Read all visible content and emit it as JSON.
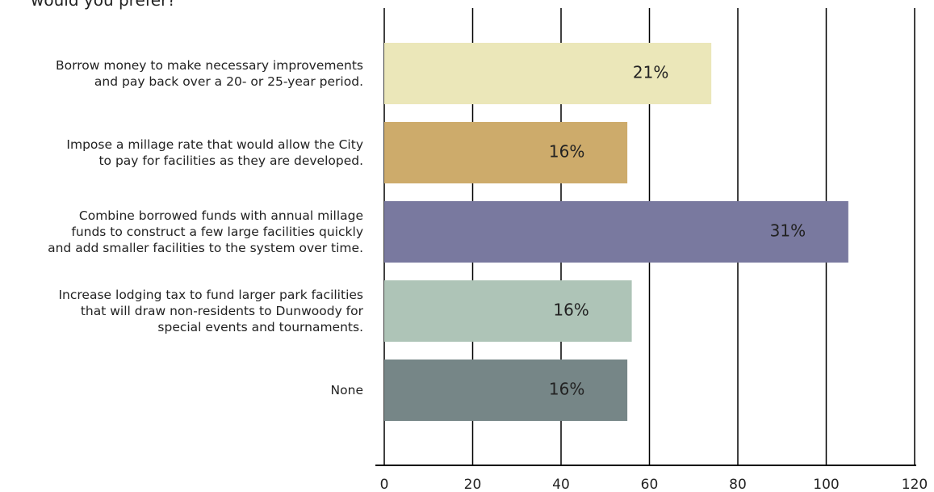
{
  "chart_data": {
    "type": "bar",
    "orientation": "horizontal",
    "title": "would you prefer?",
    "categories": [
      "Borrow money to make necessary improvements\nand pay back over a 20- or 25-year period.",
      "Impose a millage rate that would allow the City\nto pay for facilities as they are developed.",
      "Combine borrowed funds with annual millage\nfunds to construct a few large facilities quickly\nand add smaller facilities to the system over time.",
      "Increase lodging tax to fund larger park facilities\nthat will draw non-residents to Dunwoody for\nspecial events and tournaments.",
      "None"
    ],
    "values": [
      74,
      55,
      105,
      56,
      55
    ],
    "percent_labels": [
      "21%",
      "16%",
      "31%",
      "16%",
      "16%"
    ],
    "colors": [
      "#ebe7b9",
      "#cdab6b",
      "#79799f",
      "#aec4b7",
      "#768687"
    ],
    "xlim": [
      0,
      120
    ],
    "xticks": [
      0,
      20,
      40,
      60,
      80,
      100,
      120
    ],
    "grid": true
  }
}
